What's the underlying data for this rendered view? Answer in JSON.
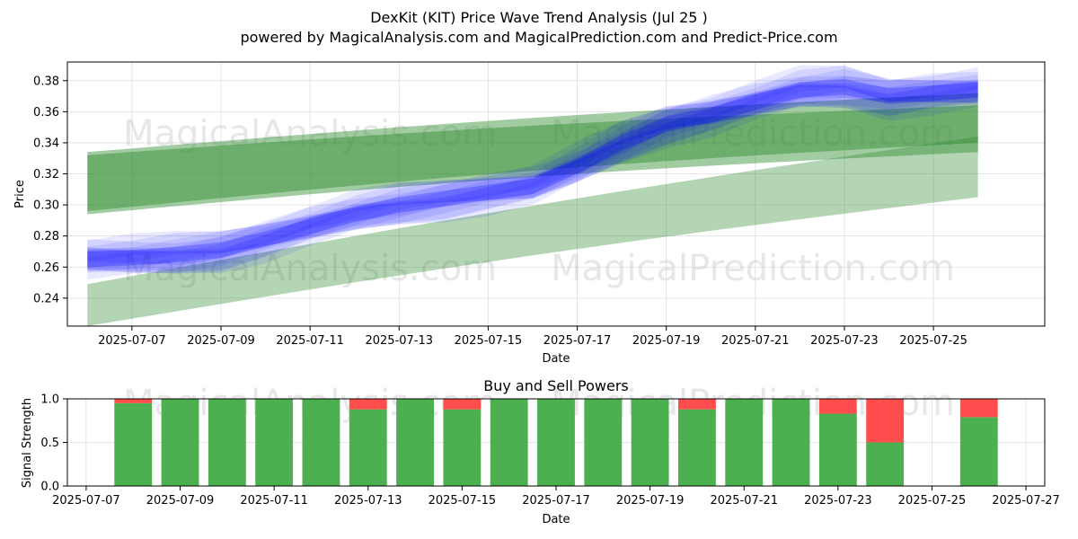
{
  "title": "DexKit (KIT) Price Wave Trend Analysis (Jul 25 )",
  "subtitle": "powered by MagicalAnalysis.com and MagicalPrediction.com and Predict-Price.com",
  "watermarks": [
    "MagicalAnalysis.com",
    "MagicalPrediction.com"
  ],
  "colors": {
    "blue": "#0000ff",
    "green": "#2e8b2e",
    "buy": "#4caf50",
    "sell": "#ff4d4d",
    "grid": "#dddddd"
  },
  "chart_data": [
    {
      "type": "area",
      "title": "",
      "xlabel": "Date",
      "ylabel": "Price",
      "xlim": [
        "2025-07-06",
        "2025-07-27"
      ],
      "ylim": [
        0.222,
        0.392
      ],
      "grid": true,
      "x_ticks": [
        "2025-07-07",
        "2025-07-09",
        "2025-07-11",
        "2025-07-13",
        "2025-07-15",
        "2025-07-17",
        "2025-07-19",
        "2025-07-21",
        "2025-07-23",
        "2025-07-25"
      ],
      "y_ticks": [
        0.24,
        0.26,
        0.28,
        0.3,
        0.32,
        0.34,
        0.36,
        0.38
      ],
      "price_wave_center": {
        "x": [
          "2025-07-06",
          "2025-07-07",
          "2025-07-08",
          "2025-07-09",
          "2025-07-10",
          "2025-07-11",
          "2025-07-12",
          "2025-07-13",
          "2025-07-14",
          "2025-07-15",
          "2025-07-16",
          "2025-07-17",
          "2025-07-18",
          "2025-07-19",
          "2025-07-20",
          "2025-07-21",
          "2025-07-22",
          "2025-07-23",
          "2025-07-24",
          "2025-07-25",
          "2025-07-26"
        ],
        "y": [
          0.265,
          0.266,
          0.268,
          0.271,
          0.278,
          0.286,
          0.294,
          0.3,
          0.304,
          0.308,
          0.312,
          0.325,
          0.34,
          0.352,
          0.358,
          0.366,
          0.374,
          0.376,
          0.37,
          0.372,
          0.374
        ],
        "half_width": 0.007
      },
      "green_bands": [
        {
          "x": [
            "2025-07-06",
            "2025-07-26"
          ],
          "upper": [
            0.334,
            0.372
          ],
          "lower": [
            0.294,
            0.334
          ]
        },
        {
          "x": [
            "2025-07-06",
            "2025-07-26"
          ],
          "upper": [
            0.332,
            0.364
          ],
          "lower": [
            0.296,
            0.34
          ]
        },
        {
          "x": [
            "2025-07-06",
            "2025-07-26"
          ],
          "upper": [
            0.249,
            0.344
          ],
          "lower": [
            0.222,
            0.305
          ]
        }
      ]
    },
    {
      "type": "bar",
      "title": "Buy and Sell Powers",
      "xlabel": "Date",
      "ylabel": "Signal Strength",
      "xlim": [
        "2025-07-06.6",
        "2025-07-27.4"
      ],
      "ylim": [
        0,
        1
      ],
      "grid": true,
      "x_ticks": [
        "2025-07-07",
        "2025-07-09",
        "2025-07-11",
        "2025-07-13",
        "2025-07-15",
        "2025-07-17",
        "2025-07-19",
        "2025-07-21",
        "2025-07-23",
        "2025-07-25",
        "2025-07-27"
      ],
      "y_ticks": [
        "0.0",
        "0.5",
        "1.0"
      ],
      "categories": [
        "2025-07-08",
        "2025-07-09",
        "2025-07-10",
        "2025-07-11",
        "2025-07-12",
        "2025-07-13",
        "2025-07-14",
        "2025-07-15",
        "2025-07-16",
        "2025-07-17",
        "2025-07-18",
        "2025-07-19",
        "2025-07-20",
        "2025-07-21",
        "2025-07-22",
        "2025-07-23",
        "2025-07-24",
        "2025-07-26"
      ],
      "series": [
        {
          "values": [
            0.95,
            1.0,
            1.0,
            1.0,
            1.0,
            0.88,
            1.0,
            0.88,
            1.0,
            1.0,
            1.0,
            1.0,
            0.88,
            1.0,
            1.0,
            0.83,
            0.5,
            0.79
          ]
        },
        {
          "values": [
            0.05,
            0.0,
            0.0,
            0.0,
            0.0,
            0.12,
            0.0,
            0.12,
            0.0,
            0.0,
            0.0,
            0.0,
            0.12,
            0.0,
            0.0,
            0.17,
            0.5,
            0.21
          ]
        }
      ]
    }
  ]
}
